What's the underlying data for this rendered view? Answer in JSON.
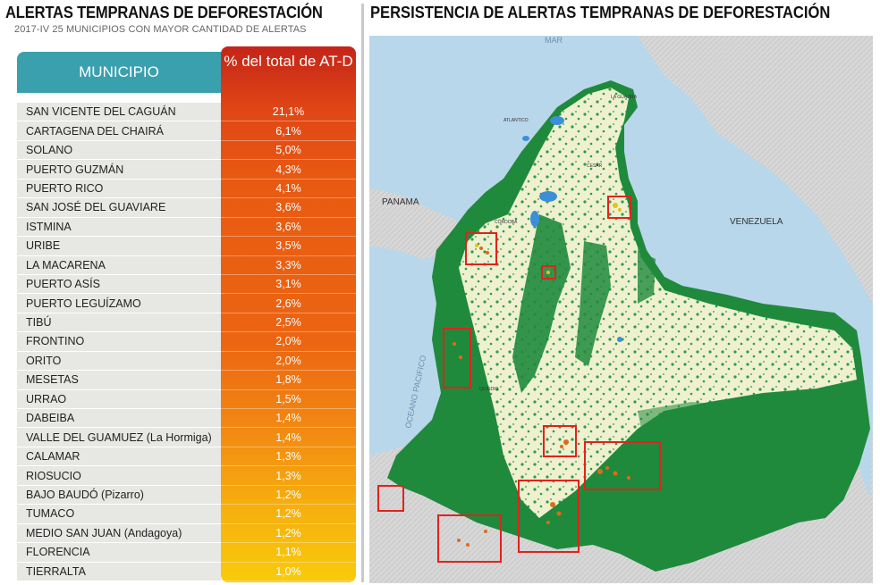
{
  "left_title": "ALERTAS TEMPRANAS DE DEFORESTACIÓN",
  "left_subtitle": "2017-IV 25 MUNICIPIOS CON MAYOR CANTIDAD DE ALERTAS",
  "table": {
    "col_municipio": "MUNICIPIO",
    "col_pct": "% del total de AT-D",
    "rows": [
      {
        "municipio": "SAN VICENTE DEL CAGUÁN",
        "pct": "21,1%"
      },
      {
        "municipio": "CARTAGENA DEL CHAIRÁ",
        "pct": "6,1%"
      },
      {
        "municipio": "SOLANO",
        "pct": "5,0%"
      },
      {
        "municipio": "PUERTO GUZMÁN",
        "pct": "4,3%"
      },
      {
        "municipio": "PUERTO RICO",
        "pct": "4,1%"
      },
      {
        "municipio": "SAN JOSÉ DEL GUAVIARE",
        "pct": "3,6%"
      },
      {
        "municipio": "ISTMINA",
        "pct": "3,6%"
      },
      {
        "municipio": "URIBE",
        "pct": "3,5%"
      },
      {
        "municipio": "LA MACARENA",
        "pct": "3,3%"
      },
      {
        "municipio": "PUERTO ASÍS",
        "pct": "3,1%"
      },
      {
        "municipio": "PUERTO LEGUÍZAMO",
        "pct": "2,6%"
      },
      {
        "municipio": "TIBÚ",
        "pct": "2,5%"
      },
      {
        "municipio": "FRONTINO",
        "pct": "2,0%"
      },
      {
        "municipio": "ORITO",
        "pct": "2,0%"
      },
      {
        "municipio": "MESETAS",
        "pct": "1,8%"
      },
      {
        "municipio": "URRAO",
        "pct": "1,5%"
      },
      {
        "municipio": "DABEIBA",
        "pct": "1,4%"
      },
      {
        "municipio": "VALLE DEL GUAMUEZ (La Hormiga)",
        "pct": "1,4%"
      },
      {
        "municipio": "CALAMAR",
        "pct": "1,3%"
      },
      {
        "municipio": "RIOSUCIO",
        "pct": "1,3%"
      },
      {
        "municipio": "BAJO BAUDÓ (Pizarro)",
        "pct": "1,2%"
      },
      {
        "municipio": "TUMACO",
        "pct": "1,2%"
      },
      {
        "municipio": "MEDIO SAN JUAN (Andagoya)",
        "pct": "1,2%"
      },
      {
        "municipio": "FLORENCIA",
        "pct": "1,1%"
      },
      {
        "municipio": "TIERRALTA",
        "pct": "1,0%"
      }
    ]
  },
  "right_title": "PERSISTENCIA DE ALERTAS TEMPRANAS DE DEFORESTACIÓN",
  "map": {
    "labels": {
      "panama": "PANAMA",
      "venezuela": "VENEZUELA",
      "ocean": "OCEANO PACIFICO",
      "sea": "MAR",
      "la_guajira": "LA GUAJIRA",
      "atlantico": "ATLANTICO",
      "cesar": "CESAR",
      "cordoba": "CÓRDOBA",
      "quindio": "QUINDIO"
    },
    "colors": {
      "sea": "#b9d7ea",
      "land_outside": "#d8d8d8",
      "forest": "#1f8a3c",
      "nonforest": "#eef0cf",
      "water": "#3a8fd8",
      "highlight_box": "#e0231c"
    }
  }
}
